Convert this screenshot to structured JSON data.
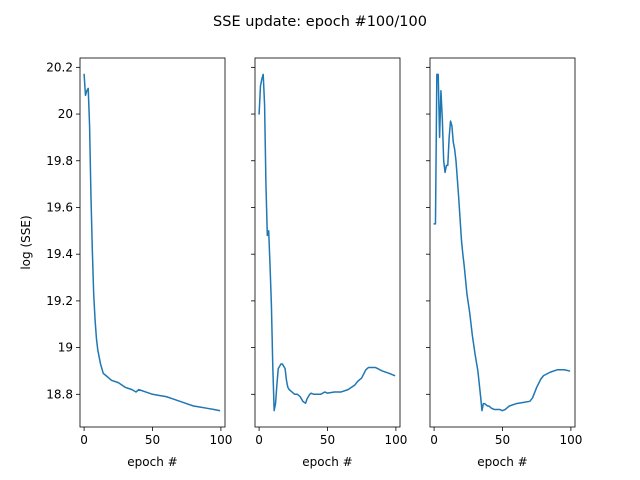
{
  "figure": {
    "title": "SSE update: epoch #100/100"
  },
  "colors": {
    "line": "#1f77b4",
    "axes": "#000000",
    "background": "#ffffff"
  },
  "chart_data": [
    {
      "type": "line",
      "xlabel": "epoch #",
      "ylabel": "log (SSE)",
      "xlim": [
        -3,
        103
      ],
      "ylim": [
        18.66,
        20.24
      ],
      "xticks": [
        0,
        50,
        100
      ],
      "yticks": [
        18.8,
        19.0,
        19.2,
        19.4,
        19.6,
        19.8,
        20.0,
        20.2
      ],
      "ytick_labels_shown": true,
      "series": [
        {
          "x": [
            0,
            1,
            2,
            3,
            4,
            5,
            6,
            7,
            8,
            9,
            10,
            11,
            12,
            13,
            14,
            16,
            18,
            20,
            25,
            30,
            35,
            38,
            40,
            45,
            50,
            55,
            60,
            65,
            70,
            75,
            80,
            85,
            90,
            95,
            99
          ],
          "y": [
            20.17,
            20.08,
            20.1,
            20.11,
            19.95,
            19.65,
            19.42,
            19.23,
            19.12,
            19.04,
            18.99,
            18.96,
            18.93,
            18.91,
            18.89,
            18.88,
            18.87,
            18.86,
            18.85,
            18.83,
            18.82,
            18.81,
            18.82,
            18.81,
            18.8,
            18.795,
            18.79,
            18.78,
            18.77,
            18.76,
            18.75,
            18.745,
            18.74,
            18.735,
            18.73
          ]
        }
      ]
    },
    {
      "type": "line",
      "xlabel": "epoch #",
      "ylabel": "",
      "xlim": [
        -3,
        103
      ],
      "ylim": [
        18.66,
        20.24
      ],
      "xticks": [
        0,
        50,
        100
      ],
      "yticks": [
        18.8,
        19.0,
        19.2,
        19.4,
        19.6,
        19.8,
        20.0,
        20.2
      ],
      "ytick_labels_shown": false,
      "series": [
        {
          "x": [
            0,
            1,
            2,
            3,
            4,
            5,
            6,
            7,
            8,
            9,
            10,
            11,
            12,
            13,
            14,
            15,
            16,
            17,
            18,
            19,
            20,
            21,
            22,
            24,
            26,
            28,
            30,
            32,
            33,
            34,
            35,
            36,
            37,
            38,
            40,
            42,
            45,
            48,
            50,
            55,
            60,
            65,
            70,
            72,
            75,
            78,
            80,
            85,
            90,
            95,
            99
          ],
          "y": [
            20.0,
            20.12,
            20.15,
            20.17,
            20.04,
            19.7,
            19.48,
            19.5,
            19.35,
            19.18,
            18.92,
            18.73,
            18.76,
            18.84,
            18.91,
            18.92,
            18.93,
            18.93,
            18.92,
            18.91,
            18.86,
            18.83,
            18.82,
            18.81,
            18.8,
            18.8,
            18.79,
            18.77,
            18.765,
            18.762,
            18.78,
            18.79,
            18.8,
            18.805,
            18.8,
            18.8,
            18.8,
            18.81,
            18.805,
            18.81,
            18.81,
            18.82,
            18.84,
            18.855,
            18.87,
            18.905,
            18.915,
            18.915,
            18.9,
            18.89,
            18.88
          ]
        }
      ]
    },
    {
      "type": "line",
      "xlabel": "epoch #",
      "ylabel": "",
      "xlim": [
        -3,
        103
      ],
      "ylim": [
        18.66,
        20.24
      ],
      "xticks": [
        0,
        50,
        100
      ],
      "yticks": [
        18.8,
        19.0,
        19.2,
        19.4,
        19.6,
        19.8,
        20.0,
        20.2
      ],
      "ytick_labels_shown": false,
      "series": [
        {
          "x": [
            0,
            1,
            2,
            3,
            4,
            5,
            6,
            7,
            8,
            9,
            10,
            11,
            12,
            13,
            14,
            15,
            16,
            17,
            18,
            19,
            20,
            21,
            22,
            24,
            26,
            28,
            30,
            32,
            34,
            35,
            36,
            37,
            38,
            39,
            40,
            42,
            44,
            46,
            48,
            50,
            52,
            55,
            60,
            65,
            70,
            72,
            75,
            78,
            80,
            85,
            90,
            95,
            99
          ],
          "y": [
            19.53,
            19.53,
            20.17,
            20.17,
            19.9,
            20.1,
            19.98,
            19.8,
            19.75,
            19.78,
            19.78,
            19.9,
            19.97,
            19.95,
            19.88,
            19.85,
            19.8,
            19.72,
            19.64,
            19.55,
            19.46,
            19.4,
            19.35,
            19.23,
            19.15,
            19.05,
            18.97,
            18.9,
            18.79,
            18.73,
            18.76,
            18.76,
            18.755,
            18.75,
            18.75,
            18.74,
            18.735,
            18.735,
            18.735,
            18.73,
            18.735,
            18.75,
            18.76,
            18.765,
            18.77,
            18.785,
            18.83,
            18.865,
            18.88,
            18.895,
            18.905,
            18.905,
            18.9
          ]
        }
      ]
    }
  ]
}
